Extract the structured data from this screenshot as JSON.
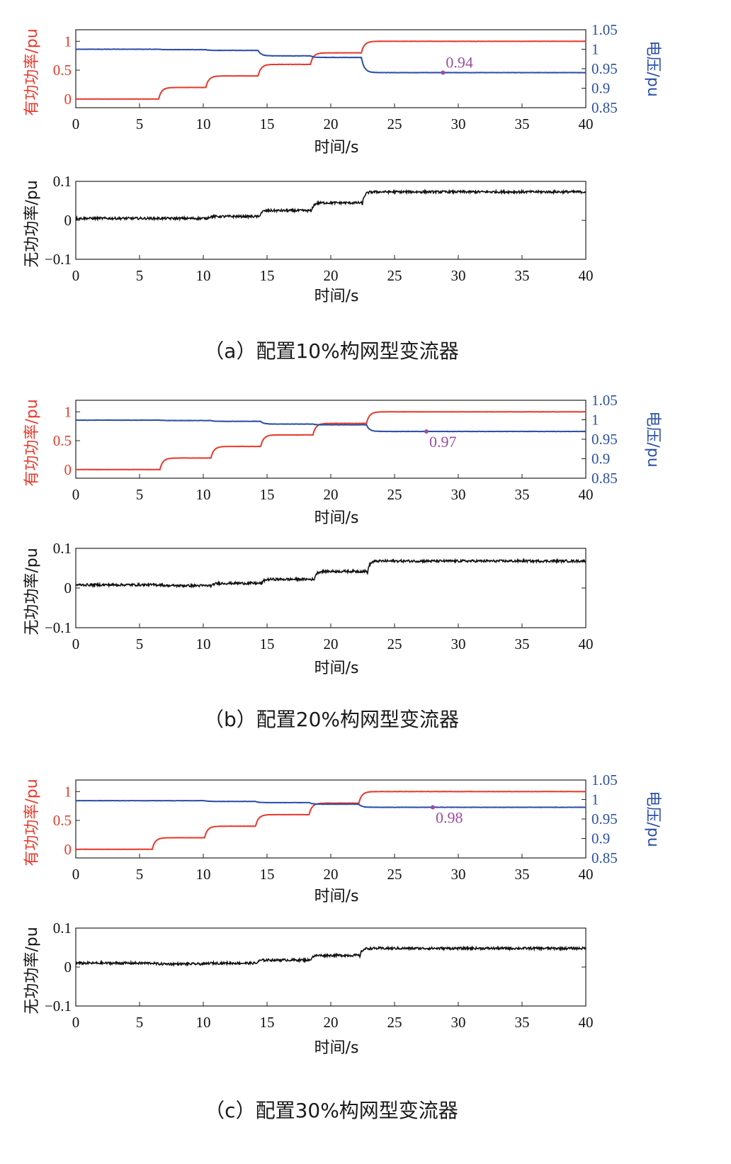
{
  "panels": [
    {
      "caption": "（a）配置10%构网型变流器",
      "top": {
        "ylabel_left": "有功功率/pu",
        "ylabel_right": "电压/pu",
        "xlabel": "时间/s",
        "xlim": [
          0,
          40
        ],
        "xticks": [
          "0",
          "5",
          "10",
          "15",
          "20",
          "25",
          "30",
          "35",
          "40"
        ],
        "ylim_left": [
          -0.15,
          1.2
        ],
        "yticks_left": [
          "0",
          "0.5",
          "1"
        ],
        "ylim_right": [
          0.85,
          1.05
        ],
        "yticks_right": [
          "0.85",
          "0.9",
          "0.95",
          "1",
          "1.05"
        ],
        "annotation": {
          "text": "0.94",
          "x": 28.8,
          "y": 0.94,
          "label_pos": "above"
        }
      },
      "bottom": {
        "ylabel": "无功功率/pu",
        "xlabel": "时间/s",
        "xlim": [
          0,
          40
        ],
        "xticks": [
          "0",
          "5",
          "10",
          "15",
          "20",
          "25",
          "30",
          "35",
          "40"
        ],
        "ylim": [
          -0.1,
          0.1
        ],
        "yticks": [
          "−0.1",
          "0",
          "0.1"
        ]
      }
    },
    {
      "caption": "（b）配置20%构网型变流器",
      "top": {
        "ylabel_left": "有功功率/pu",
        "ylabel_right": "电压/pu",
        "xlabel": "时间/s",
        "xlim": [
          0,
          40
        ],
        "xticks": [
          "0",
          "5",
          "10",
          "15",
          "20",
          "25",
          "30",
          "35",
          "40"
        ],
        "ylim_left": [
          -0.15,
          1.2
        ],
        "yticks_left": [
          "0",
          "0.5",
          "1"
        ],
        "ylim_right": [
          0.85,
          1.05
        ],
        "yticks_right": [
          "0.85",
          "0.9",
          "0.95",
          "1",
          "1.05"
        ],
        "annotation": {
          "text": "0.97",
          "x": 27.5,
          "y": 0.97,
          "label_pos": "below"
        }
      },
      "bottom": {
        "ylabel": "无功功率/pu",
        "xlabel": "时间/s",
        "xlim": [
          0,
          40
        ],
        "xticks": [
          "0",
          "5",
          "10",
          "15",
          "20",
          "25",
          "30",
          "35",
          "40"
        ],
        "ylim": [
          -0.1,
          0.1
        ],
        "yticks": [
          "−0.1",
          "0",
          "0.1"
        ]
      }
    },
    {
      "caption": "（c）配置30%构网型变流器",
      "top": {
        "ylabel_left": "有功功率/pu",
        "ylabel_right": "电压/pu",
        "xlabel": "时间/s",
        "xlim": [
          0,
          40
        ],
        "xticks": [
          "0",
          "5",
          "10",
          "15",
          "20",
          "25",
          "30",
          "35",
          "40"
        ],
        "ylim_left": [
          -0.15,
          1.2
        ],
        "yticks_left": [
          "0",
          "0.5",
          "1"
        ],
        "ylim_right": [
          0.85,
          1.05
        ],
        "yticks_right": [
          "0.85",
          "0.9",
          "0.95",
          "1",
          "1.05"
        ],
        "annotation": {
          "text": "0.98",
          "x": 28,
          "y": 0.98,
          "label_pos": "below"
        }
      },
      "bottom": {
        "ylabel": "无功功率/pu",
        "xlabel": "时间/s",
        "xlim": [
          0,
          40
        ],
        "xticks": [
          "0",
          "5",
          "10",
          "15",
          "20",
          "25",
          "30",
          "35",
          "40"
        ],
        "ylim": [
          -0.1,
          0.1
        ],
        "yticks": [
          "−0.1",
          "0",
          "0.1"
        ]
      }
    }
  ],
  "colors": {
    "active_power": "#e8392b",
    "voltage": "#2b4fa8",
    "reactive_power": "#111111",
    "annotation": "#9b4ea0"
  },
  "chart_data": [
    {
      "type": "line",
      "panel": "a-top",
      "series": [
        {
          "axis": "left",
          "color": "#e8392b",
          "steps": [
            [
              0,
              0.0
            ],
            [
              6.5,
              0.2
            ],
            [
              10.2,
              0.4
            ],
            [
              14.3,
              0.6
            ],
            [
              18.4,
              0.8
            ],
            [
              22.4,
              1.0
            ]
          ],
          "end": 40
        },
        {
          "axis": "right",
          "color": "#2b4fa8",
          "steps": [
            [
              0,
              1.0
            ],
            [
              6.5,
              0.999
            ],
            [
              10.2,
              0.997
            ],
            [
              14.3,
              0.983
            ],
            [
              18.4,
              0.979
            ],
            [
              22.4,
              0.94
            ]
          ],
          "end": 40
        }
      ]
    },
    {
      "type": "line",
      "panel": "a-bottom",
      "series": [
        {
          "color": "#111111",
          "steps": [
            [
              0,
              0.005
            ],
            [
              6.5,
              0.005
            ],
            [
              10.2,
              0.01
            ],
            [
              14.3,
              0.025
            ],
            [
              18.4,
              0.045
            ],
            [
              22.4,
              0.073
            ]
          ],
          "end": 40
        }
      ]
    },
    {
      "type": "line",
      "panel": "b-top",
      "series": [
        {
          "axis": "left",
          "color": "#e8392b",
          "steps": [
            [
              0,
              0.0
            ],
            [
              6.6,
              0.2
            ],
            [
              10.6,
              0.4
            ],
            [
              14.5,
              0.6
            ],
            [
              18.6,
              0.8
            ],
            [
              22.8,
              1.0
            ]
          ],
          "end": 40
        },
        {
          "axis": "right",
          "color": "#2b4fa8",
          "steps": [
            [
              0,
              0.999
            ],
            [
              6.6,
              0.998
            ],
            [
              10.6,
              0.996
            ],
            [
              14.5,
              0.989
            ],
            [
              18.6,
              0.987
            ],
            [
              22.8,
              0.97
            ]
          ],
          "end": 40
        }
      ]
    },
    {
      "type": "line",
      "panel": "b-bottom",
      "series": [
        {
          "color": "#111111",
          "steps": [
            [
              0,
              0.008
            ],
            [
              6.6,
              0.006
            ],
            [
              10.6,
              0.012
            ],
            [
              14.5,
              0.022
            ],
            [
              18.6,
              0.042
            ],
            [
              22.8,
              0.068
            ]
          ],
          "end": 40
        }
      ]
    },
    {
      "type": "line",
      "panel": "c-top",
      "series": [
        {
          "axis": "left",
          "color": "#e8392b",
          "steps": [
            [
              0,
              0.0
            ],
            [
              6.0,
              0.2
            ],
            [
              10.1,
              0.4
            ],
            [
              14.1,
              0.6
            ],
            [
              18.3,
              0.8
            ],
            [
              22.2,
              1.0
            ]
          ],
          "end": 40
        },
        {
          "axis": "right",
          "color": "#2b4fa8",
          "steps": [
            [
              0,
              0.997
            ],
            [
              6.0,
              0.997
            ],
            [
              10.1,
              0.995
            ],
            [
              14.1,
              0.992
            ],
            [
              18.3,
              0.988
            ],
            [
              22.2,
              0.98
            ]
          ],
          "end": 40
        }
      ]
    },
    {
      "type": "line",
      "panel": "c-bottom",
      "series": [
        {
          "color": "#111111",
          "steps": [
            [
              0,
              0.01
            ],
            [
              6.0,
              0.008
            ],
            [
              10.1,
              0.01
            ],
            [
              14.1,
              0.018
            ],
            [
              18.3,
              0.03
            ],
            [
              22.2,
              0.048
            ]
          ],
          "end": 40
        }
      ]
    }
  ]
}
